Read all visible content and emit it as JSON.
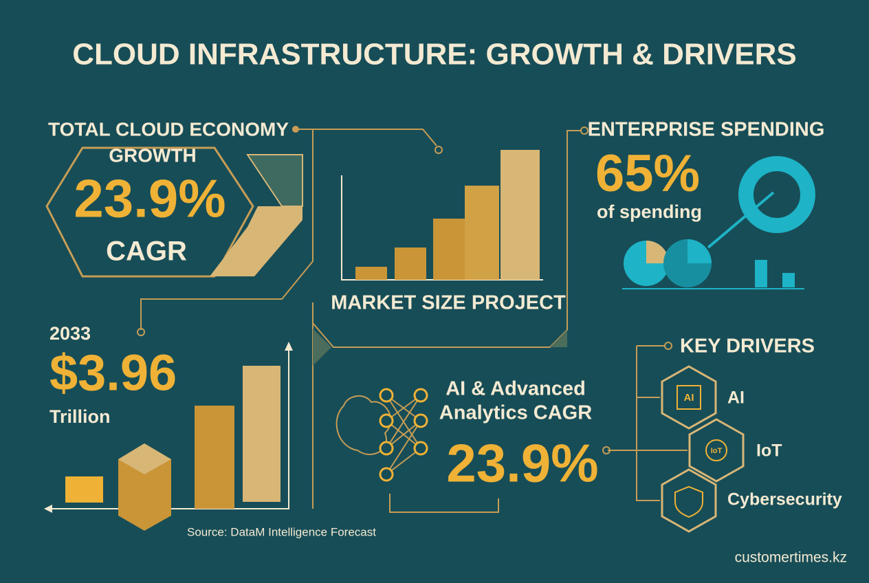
{
  "header": {
    "title": "CLOUD INFRASTRUCTURE: GROWTH & DRIVERS"
  },
  "total_growth": {
    "heading_lines": [
      "TOTAL CLOUD ECONOMY",
      "GROWTH"
    ],
    "value": "23.9%",
    "unit": "CAGR"
  },
  "market": {
    "label": "MARKET SIZE PROJECT"
  },
  "enterprise": {
    "heading": "ENTERPRISE SPENDING",
    "value": "65%",
    "caption": "of spending"
  },
  "forecast": {
    "year": "2033",
    "value": "$3.96",
    "unit": "Trillion",
    "source": "Source: DataM Intelligence Forecast"
  },
  "ai_analytics": {
    "heading_lines": [
      "AI & Advanced",
      "Analytics CAGR"
    ],
    "value": "23.9%"
  },
  "drivers": {
    "heading": "KEY DRIVERS",
    "items": [
      "AI",
      "IoT",
      "Cybersecurity"
    ],
    "icon_labels": [
      "AI",
      "IoT"
    ]
  },
  "footer": {
    "site": "customertimes.kz"
  }
}
